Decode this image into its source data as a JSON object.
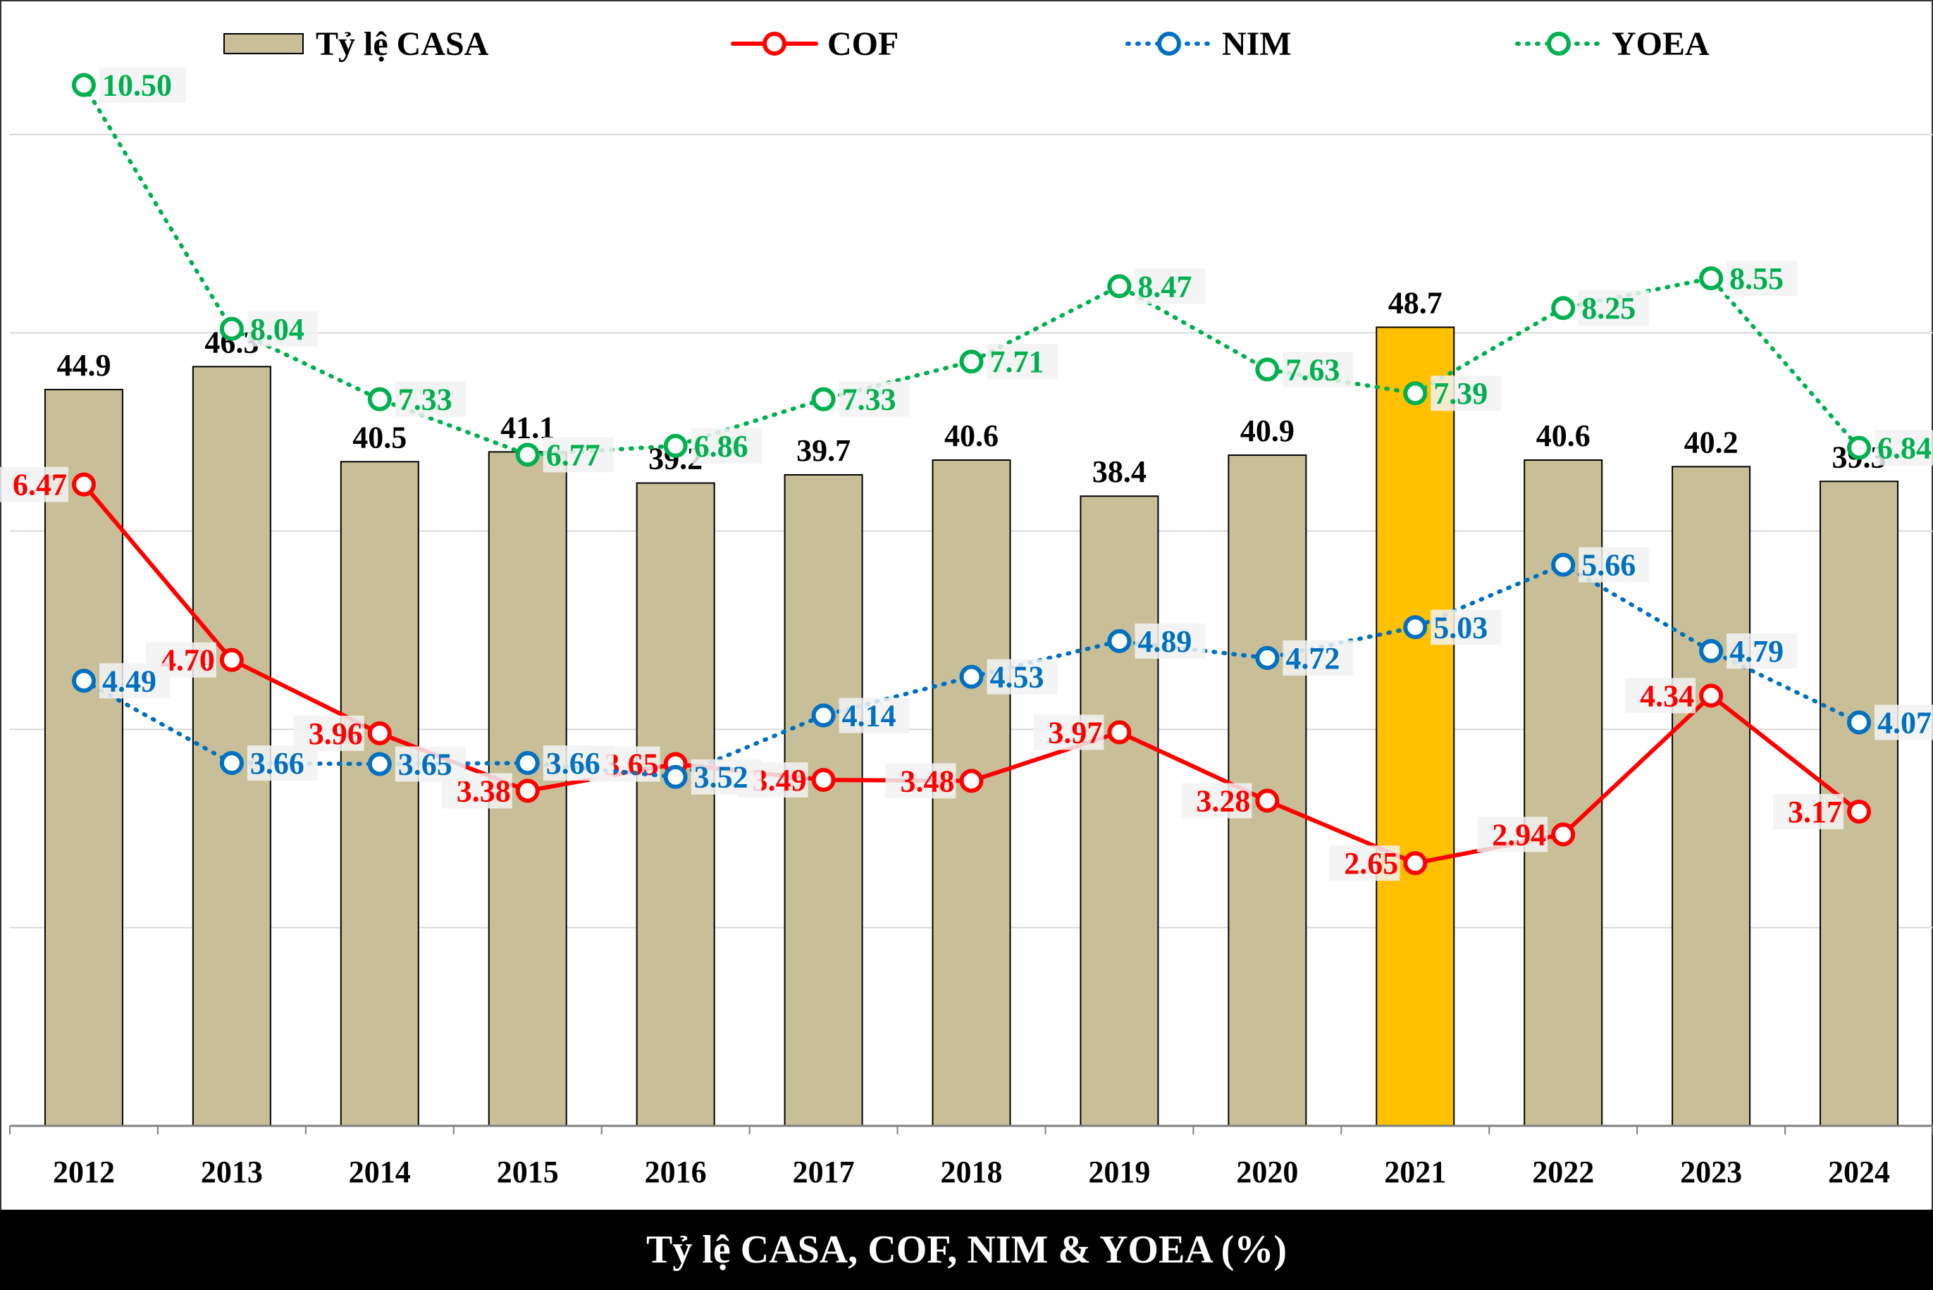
{
  "caption": "Tỷ lệ CASA, COF, NIM & YOEA (%)",
  "colors": {
    "bar": "#c8bf98",
    "bar_highlight": "#ffc000",
    "cof": "#ff0000",
    "nim": "#0070c0",
    "yoea": "#00b050",
    "grid": "#d9d9d9"
  },
  "chart_data": {
    "type": "bar",
    "categories": [
      "2012",
      "2013",
      "2014",
      "2015",
      "2016",
      "2017",
      "2018",
      "2019",
      "2020",
      "2021",
      "2022",
      "2023",
      "2024"
    ],
    "highlight_category": "2021",
    "grid": true,
    "legend_position": "top",
    "series": [
      {
        "name": "Tỷ lệ CASA",
        "kind": "bar",
        "axis": "left",
        "values": [
          44.9,
          46.3,
          40.5,
          41.1,
          39.2,
          39.7,
          40.6,
          38.4,
          40.9,
          48.7,
          40.6,
          40.2,
          39.3
        ],
        "labels": [
          "44.9",
          "46.3",
          "40.5",
          "41.1",
          "39.2",
          "39.7",
          "40.6",
          "38.4",
          "40.9",
          "48.7",
          "40.6",
          "40.2",
          "39.3"
        ]
      },
      {
        "name": "COF",
        "kind": "line-solid",
        "axis": "right",
        "values": [
          6.47,
          4.7,
          3.96,
          3.38,
          3.65,
          3.49,
          3.48,
          3.97,
          3.28,
          2.65,
          2.94,
          4.34,
          3.17
        ],
        "labels": [
          "6.47",
          "4.70",
          "3.96",
          "3.38",
          "3.65",
          "3.49",
          "3.48",
          "3.97",
          "3.28",
          "2.65",
          "2.94",
          "4.34",
          "3.17"
        ]
      },
      {
        "name": "NIM",
        "kind": "line-dotted",
        "axis": "right",
        "values": [
          4.49,
          3.66,
          3.65,
          3.66,
          3.52,
          4.14,
          4.53,
          4.89,
          4.72,
          5.03,
          5.66,
          4.79,
          4.07
        ],
        "labels": [
          "4.49",
          "3.66",
          "3.65",
          "3.66",
          "3.52",
          "4.14",
          "4.53",
          "4.89",
          "4.72",
          "5.03",
          "5.66",
          "4.79",
          "4.07"
        ]
      },
      {
        "name": "YOEA",
        "kind": "line-dotted",
        "axis": "right",
        "values": [
          10.5,
          8.04,
          7.33,
          6.77,
          6.86,
          7.33,
          7.71,
          8.47,
          7.63,
          7.39,
          8.25,
          8.55,
          6.84
        ],
        "labels": [
          "10.50",
          "8.04",
          "7.33",
          "6.77",
          "6.86",
          "7.33",
          "7.71",
          "8.47",
          "7.63",
          "7.39",
          "8.25",
          "8.55",
          "6.84"
        ]
      }
    ]
  }
}
